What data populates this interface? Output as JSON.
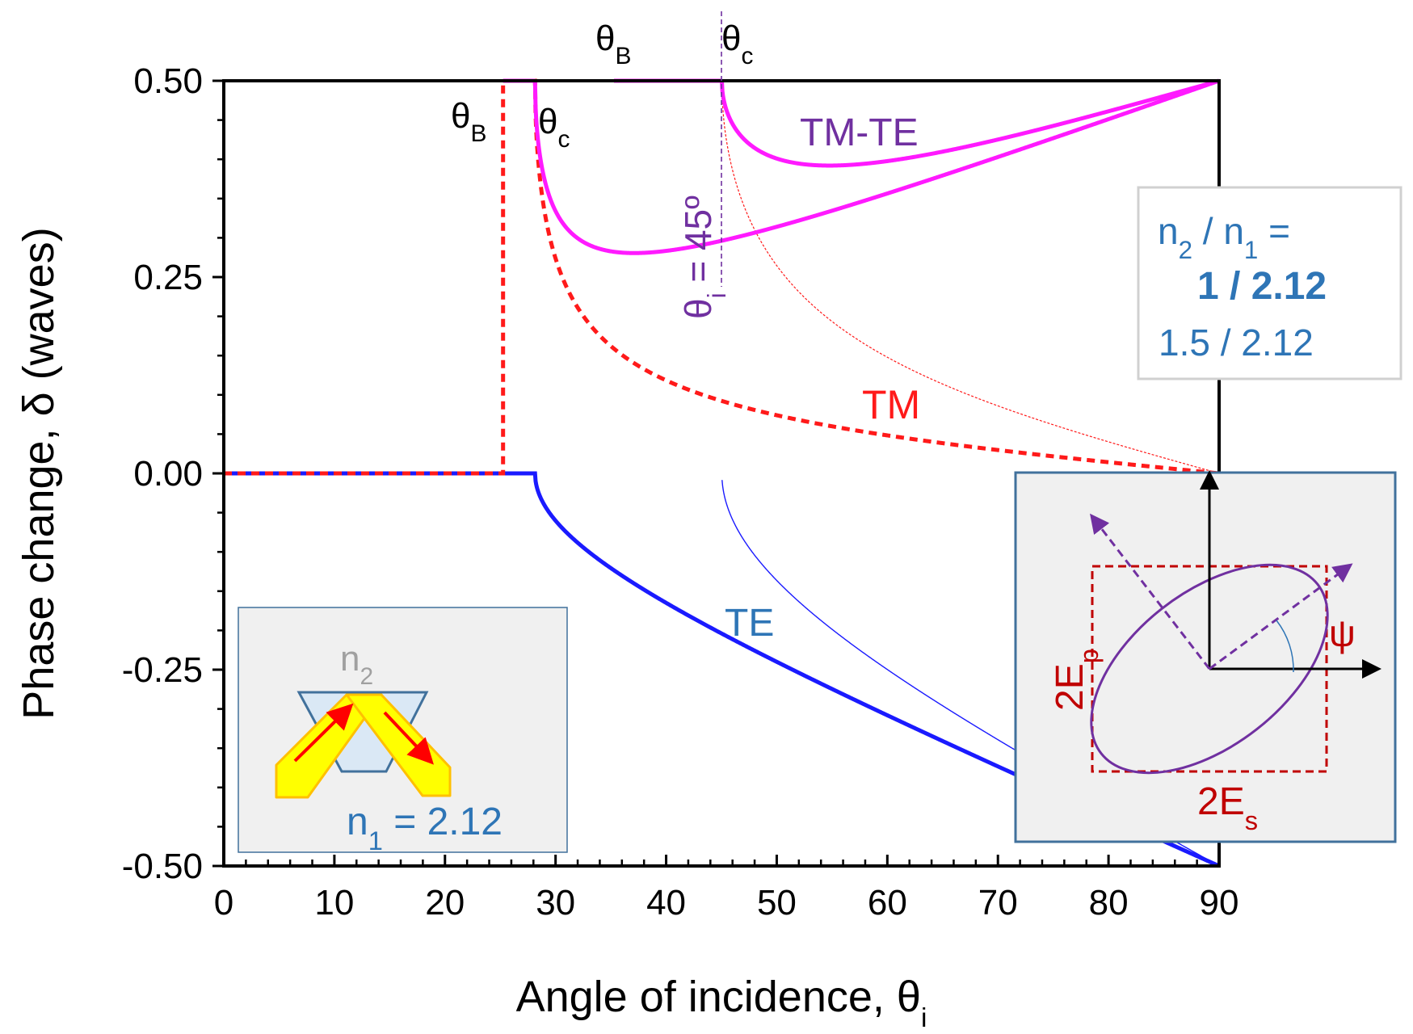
{
  "chart_data": {
    "type": "line",
    "title": "",
    "xlabel": {
      "main": "Angle of incidence, θ",
      "sub": "i"
    },
    "ylabel": "Phase change, δ (waves)",
    "xlim": [
      0,
      90
    ],
    "ylim": [
      -0.5,
      0.5
    ],
    "x_ticks": [
      0,
      10,
      20,
      30,
      40,
      50,
      60,
      70,
      80,
      90
    ],
    "y_ticks": [
      -0.5,
      -0.25,
      0,
      0.25,
      0.5
    ],
    "x_tick_labels": [
      "0",
      "10",
      "20",
      "30",
      "40",
      "50",
      "60",
      "70",
      "80",
      "90"
    ],
    "y_tick_labels": [
      "-0.50",
      "-0.25",
      "0.00",
      "0.25",
      "0.50"
    ],
    "constants": {
      "n1_main": 2.12,
      "n2_main": 1.0,
      "n2_secondary": 1.5
    },
    "series": [
      {
        "name": "TE (n2/n1 = 1/2.12)",
        "role": "te_main",
        "color": "#1a1aff"
      },
      {
        "name": "TM (n2/n1 = 1/2.12)",
        "role": "tm_main",
        "color": "#ff1a1a"
      },
      {
        "name": "TM-TE (n2/n1 = 1/2.12)",
        "role": "diff_main",
        "color": "#ff1aff"
      },
      {
        "name": "TE (n2/n1 = 1.5/2.12)",
        "role": "te_secondary",
        "color": "#1a1aff"
      },
      {
        "name": "TM (n2/n1 = 1.5/2.12)",
        "role": "tm_secondary",
        "color": "#ff1a1a"
      },
      {
        "name": "TM-TE (n2/n1 = 1.5/2.12)",
        "role": "diff_secondary",
        "color": "#ff1aff"
      }
    ],
    "annotations": {
      "te_label": "TE",
      "tm_label": "TM",
      "tmte_label": "TM-TE",
      "theta_b_main": "θ",
      "theta_b_sub": "B",
      "theta_c_main": "θ",
      "theta_c_sub": "c",
      "theta_i_main": "θ",
      "theta_i_sub": "i",
      "theta_i_rest": " = 45º"
    },
    "legend_box": {
      "line1_a": "n",
      "line1_sub1": "2",
      "line1_b": " / n",
      "line1_sub2": "1",
      "line1_c": " =",
      "line2": "1 / 2.12",
      "line3": "1.5 / 2.12"
    },
    "inset_prism": {
      "n2_label": "n",
      "n2_sub": "2",
      "n1_label": "n",
      "n1_sub": "1",
      "n1_rest": " = 2.12"
    },
    "inset_ellipse": {
      "ep_label": "2E",
      "ep_sub": "p",
      "es_label": "2E",
      "es_sub": "s",
      "psi_label": "ψ"
    }
  },
  "colors": {
    "te": "#1a1aff",
    "tm": "#ff1a1a",
    "diff": "#ff1aff",
    "purple": "#7030a0",
    "text_blue": "#2e75b6",
    "dark_red": "#c00000",
    "inset_bg": "#f0f0f0",
    "inset_border": "#41719c",
    "legend_border": "#d0d0d0"
  }
}
